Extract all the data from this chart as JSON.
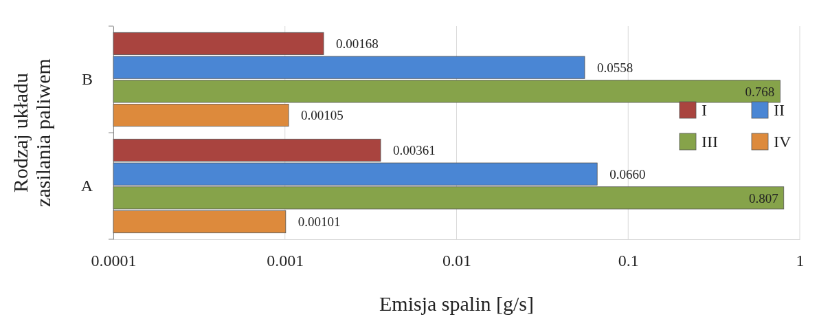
{
  "chart_data": {
    "type": "bar",
    "orientation": "horizontal",
    "log": "x",
    "xlabel": "Emisja spalin [g/s]",
    "ylabel": "Rodzaj układu zasilania paliwem",
    "categories": [
      "B",
      "A"
    ],
    "series": [
      {
        "name": "I",
        "color": "#a9443f",
        "values": [
          0.00168,
          0.00361
        ],
        "value_labels": [
          "0.00168",
          "0.00361"
        ]
      },
      {
        "name": "II",
        "color": "#4a86d4",
        "values": [
          0.0558,
          0.066
        ],
        "value_labels": [
          "0.0558",
          "0.0660"
        ]
      },
      {
        "name": "III",
        "color": "#86a34a",
        "values": [
          0.768,
          0.807
        ],
        "value_labels": [
          "0.768",
          "0.807"
        ]
      },
      {
        "name": "IV",
        "color": "#dd8a3c",
        "values": [
          0.00105,
          0.00101
        ],
        "value_labels": [
          "0.00105",
          "0.00101"
        ]
      }
    ],
    "xlim": [
      0.0001,
      1
    ],
    "xticks": [
      0.0001,
      0.001,
      0.01,
      0.1,
      1
    ],
    "grid": "x",
    "legend": "right"
  }
}
